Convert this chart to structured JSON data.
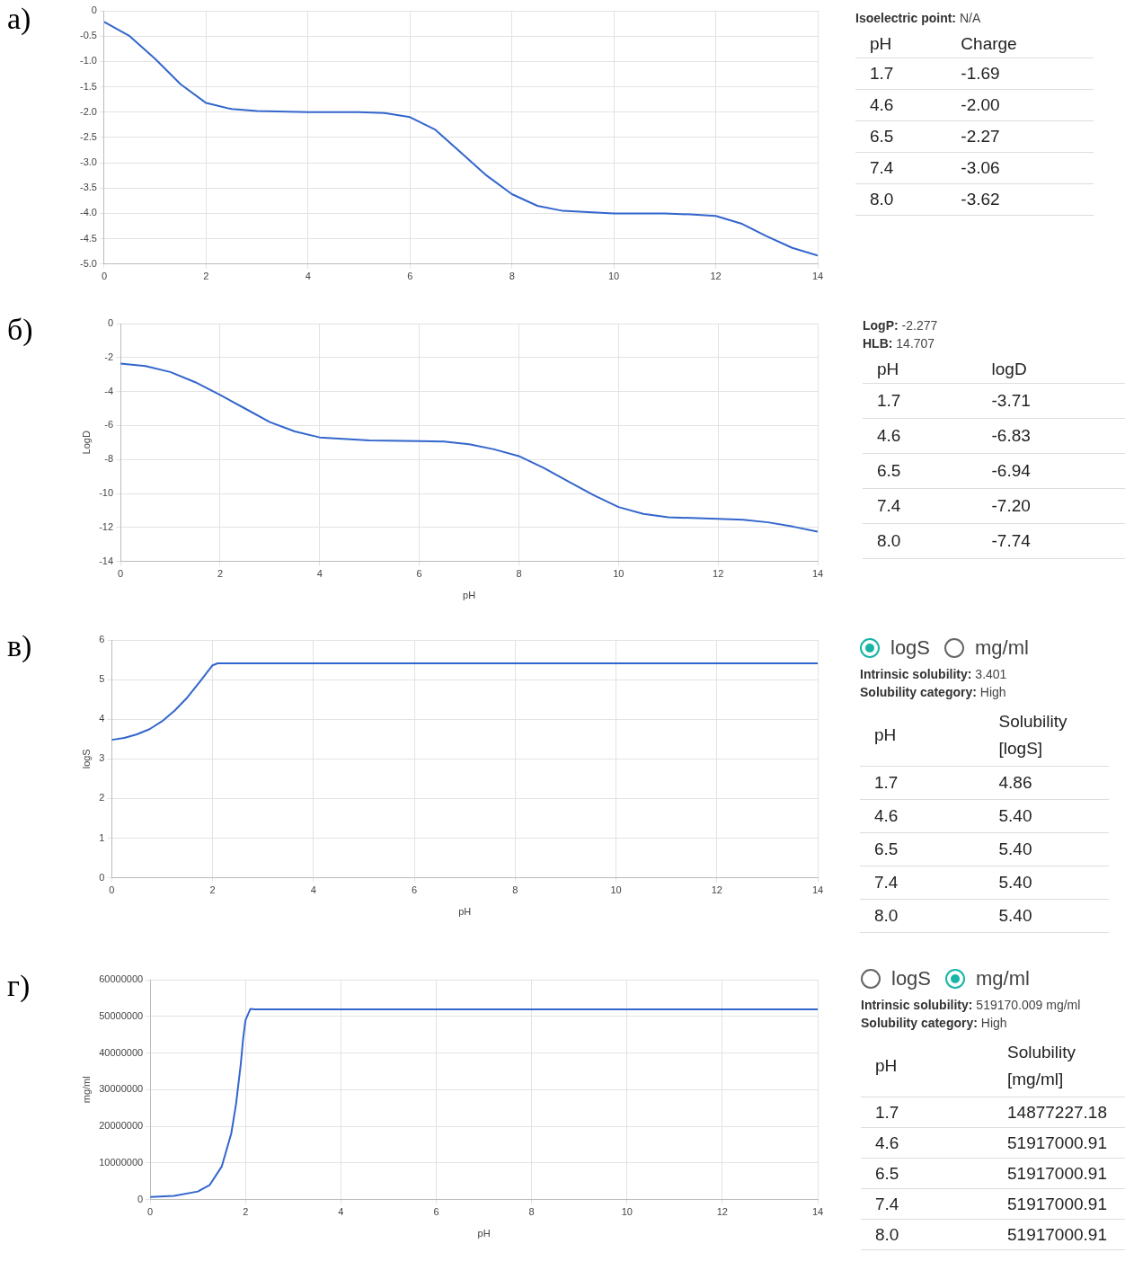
{
  "chart_data": [
    {
      "type": "line",
      "annotations": [
        "а)"
      ],
      "color": "#3366cc",
      "marker": "none",
      "grid": true,
      "xlim": [
        0,
        14
      ],
      "xticks": [
        0,
        2,
        4,
        6,
        8,
        10,
        12,
        14
      ],
      "ylim": [
        -5,
        0
      ],
      "yticks": [
        {
          "value": -5,
          "label": "-5.0"
        },
        {
          "value": -4.5,
          "label": "-4.5"
        },
        {
          "value": -4,
          "label": "-4.0"
        },
        {
          "value": -3.5,
          "label": "-3.5"
        },
        {
          "value": -3,
          "label": "-3.0"
        },
        {
          "value": -2.5,
          "label": "-2.5"
        },
        {
          "value": -2,
          "label": "-2.0"
        },
        {
          "value": -1.5,
          "label": "-1.5"
        },
        {
          "value": -1,
          "label": "-1.0"
        },
        {
          "value": -0.5,
          "label": "-0.5"
        },
        0
      ],
      "x": [
        0,
        0.5,
        1,
        1.5,
        2,
        2.5,
        3,
        4,
        5,
        5.5,
        6,
        6.5,
        7,
        7.5,
        8,
        8.5,
        9,
        10,
        11,
        11.5,
        12,
        12.5,
        13,
        13.5,
        14
      ],
      "values": [
        -0.22,
        -0.5,
        -0.95,
        -1.45,
        -1.82,
        -1.94,
        -1.98,
        -2.0,
        -2.0,
        -2.02,
        -2.1,
        -2.35,
        -2.8,
        -3.25,
        -3.62,
        -3.85,
        -3.95,
        -4.0,
        -4.0,
        -4.02,
        -4.05,
        -4.2,
        -4.45,
        -4.68,
        -4.83
      ]
    },
    {
      "type": "other",
      "annotations": [
        "Isoelectric point: N/A"
      ],
      "xlabel": "pH",
      "ylabel": "Charge",
      "categories": [
        "1.7",
        "4.6",
        "6.5",
        "7.4",
        "8.0"
      ],
      "value_labels": [
        "-1.69",
        "-2.00",
        "-2.27",
        "-3.06",
        "-3.62"
      ]
    },
    {
      "type": "line",
      "annotations": [
        "б)"
      ],
      "xlabel": "pH",
      "ylabel": "LogD",
      "color": "#3366cc",
      "marker": "none",
      "grid": true,
      "xlim": [
        0,
        14
      ],
      "xticks": [
        0,
        2,
        4,
        6,
        8,
        10,
        12,
        14
      ],
      "ylim": [
        -14,
        0
      ],
      "yticks": [
        -14,
        -12,
        -10,
        -8,
        -6,
        -4,
        -2,
        0
      ],
      "x": [
        0,
        0.5,
        1,
        1.5,
        2,
        2.5,
        3,
        3.5,
        4,
        5,
        6,
        6.5,
        7,
        7.5,
        8,
        8.5,
        9,
        9.5,
        10,
        10.5,
        11,
        12,
        12.5,
        13,
        13.5,
        14
      ],
      "values": [
        -2.35,
        -2.5,
        -2.85,
        -3.45,
        -4.2,
        -5.0,
        -5.8,
        -6.35,
        -6.7,
        -6.88,
        -6.92,
        -6.95,
        -7.1,
        -7.4,
        -7.8,
        -8.5,
        -9.3,
        -10.1,
        -10.8,
        -11.2,
        -11.4,
        -11.5,
        -11.55,
        -11.7,
        -11.95,
        -12.25
      ]
    },
    {
      "type": "other",
      "annotations": [
        "LogP: -2.277",
        "HLB: 14.707"
      ],
      "xlabel": "pH",
      "ylabel": "logD",
      "categories": [
        "1.7",
        "4.6",
        "6.5",
        "7.4",
        "8.0"
      ],
      "value_labels": [
        "-3.71",
        "-6.83",
        "-6.94",
        "-7.20",
        "-7.74"
      ]
    },
    {
      "type": "line",
      "annotations": [
        "в)"
      ],
      "xlabel": "pH",
      "ylabel": "logS",
      "color": "#3366cc",
      "marker": "none",
      "grid": true,
      "xlim": [
        0,
        14
      ],
      "xticks": [
        0,
        2,
        4,
        6,
        8,
        10,
        12,
        14
      ],
      "ylim": [
        0,
        6
      ],
      "yticks": [
        0,
        1,
        2,
        3,
        4,
        5,
        6
      ],
      "x": [
        0,
        0.25,
        0.5,
        0.75,
        1,
        1.25,
        1.5,
        1.75,
        1.9,
        2.0,
        2.1,
        14
      ],
      "values": [
        3.48,
        3.53,
        3.62,
        3.75,
        3.95,
        4.22,
        4.55,
        4.95,
        5.2,
        5.36,
        5.41,
        5.41
      ]
    },
    {
      "type": "other",
      "annotations": [
        "logS",
        "mg/ml",
        "Intrinsic solubility: 3.401",
        "Solubility category: High"
      ],
      "xlabel": "pH",
      "ylabel": "Solubility [logS]",
      "categories": [
        "1.7",
        "4.6",
        "6.5",
        "7.4",
        "8.0"
      ],
      "value_labels": [
        "4.86",
        "5.40",
        "5.40",
        "5.40",
        "5.40"
      ]
    },
    {
      "type": "line",
      "annotations": [
        "г)"
      ],
      "xlabel": "pH",
      "ylabel": "mg/ml",
      "color": "#3366cc",
      "marker": "none",
      "grid": true,
      "xlim": [
        0,
        14
      ],
      "xticks": [
        0,
        2,
        4,
        6,
        8,
        10,
        12,
        14
      ],
      "ylim": [
        0,
        60000000
      ],
      "yticks": [
        0,
        10000000,
        20000000,
        30000000,
        40000000,
        50000000,
        60000000
      ],
      "x": [
        0,
        0.5,
        1,
        1.25,
        1.5,
        1.7,
        1.8,
        1.9,
        1.95,
        2.0,
        2.1,
        2.2,
        14
      ],
      "values": [
        700000,
        1000000,
        2200000,
        4000000,
        9000000,
        18000000,
        26000000,
        37000000,
        44000000,
        49000000,
        52000000,
        51900000,
        51900000
      ]
    },
    {
      "type": "other",
      "annotations": [
        "logS",
        "mg/ml",
        "Intrinsic solubility: 519170.009 mg/ml",
        "Solubility category: High"
      ],
      "xlabel": "pH",
      "ylabel": "Solubility [mg/ml]",
      "categories": [
        "1.7",
        "4.6",
        "6.5",
        "7.4",
        "8.0"
      ],
      "value_labels": [
        "14877227.18",
        "51917000.91",
        "51917000.91",
        "51917000.91",
        "51917000.91"
      ]
    }
  ]
}
